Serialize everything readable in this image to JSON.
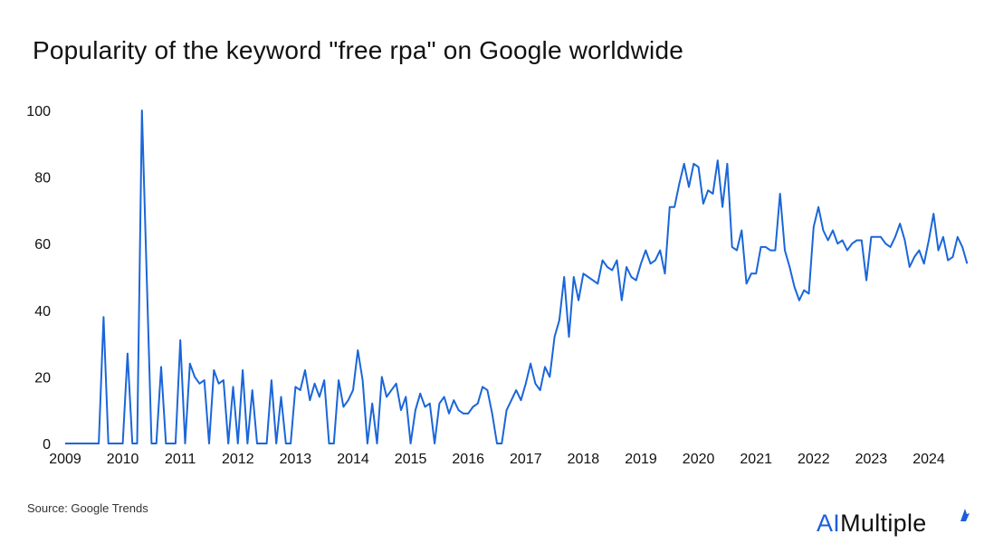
{
  "chart_data": {
    "type": "line",
    "title": "Popularity of the keyword \"free rpa\" on Google worldwide",
    "xlabel": "",
    "ylabel": "",
    "ylim": [
      0,
      100
    ],
    "yticks": [
      0,
      20,
      40,
      60,
      80,
      100
    ],
    "xticks": [
      "2009",
      "2010",
      "2011",
      "2012",
      "2013",
      "2014",
      "2015",
      "2016",
      "2017",
      "2018",
      "2019",
      "2020",
      "2021",
      "2022",
      "2023",
      "2024"
    ],
    "x_start": "2009-01",
    "x_end": "2024-09",
    "grid": false,
    "legend": "none",
    "line_color": "#1a66d9",
    "series": [
      {
        "values": [
          0,
          0,
          0,
          0,
          0,
          0,
          0,
          0,
          38,
          0,
          0,
          0,
          0,
          27,
          0,
          0,
          100,
          50,
          0,
          0,
          23,
          0,
          0,
          0,
          31,
          0,
          24,
          20,
          18,
          19,
          0,
          22,
          18,
          19,
          0,
          17,
          0,
          22,
          0,
          16,
          0,
          0,
          0,
          19,
          0,
          14,
          0,
          0,
          17,
          16,
          22,
          13,
          18,
          14,
          19,
          0,
          0,
          19,
          11,
          13,
          16,
          28,
          19,
          0,
          12,
          0,
          20,
          14,
          16,
          18,
          10,
          14,
          0,
          10,
          15,
          11,
          12,
          0,
          12,
          14,
          9,
          13,
          10,
          9,
          9,
          11,
          12,
          17,
          16,
          9,
          0,
          0,
          10,
          13,
          16,
          13,
          18,
          24,
          18,
          16,
          23,
          20,
          32,
          37,
          50,
          32,
          50,
          43,
          51,
          50,
          49,
          48,
          55,
          53,
          52,
          55,
          43,
          53,
          50,
          49,
          54,
          58,
          54,
          55,
          58,
          51,
          71,
          71,
          78,
          84,
          77,
          84,
          83,
          72,
          76,
          75,
          85,
          71,
          84,
          59,
          58,
          64,
          48,
          51,
          51,
          59,
          59,
          58,
          58,
          75,
          58,
          53,
          47,
          43,
          46,
          45,
          65,
          71,
          64,
          61,
          64,
          60,
          61,
          58,
          60,
          61,
          61,
          49,
          62,
          62,
          62,
          60,
          59,
          62,
          66,
          61,
          53,
          56,
          58,
          54,
          61,
          69,
          58,
          62,
          55,
          56,
          62,
          59,
          54
        ]
      }
    ]
  },
  "source": "Source: Google Trends",
  "brand": {
    "ai": "AI",
    "rest": "Multiple"
  },
  "brand_mark_icon": "aimultiple-logo-mark-icon"
}
